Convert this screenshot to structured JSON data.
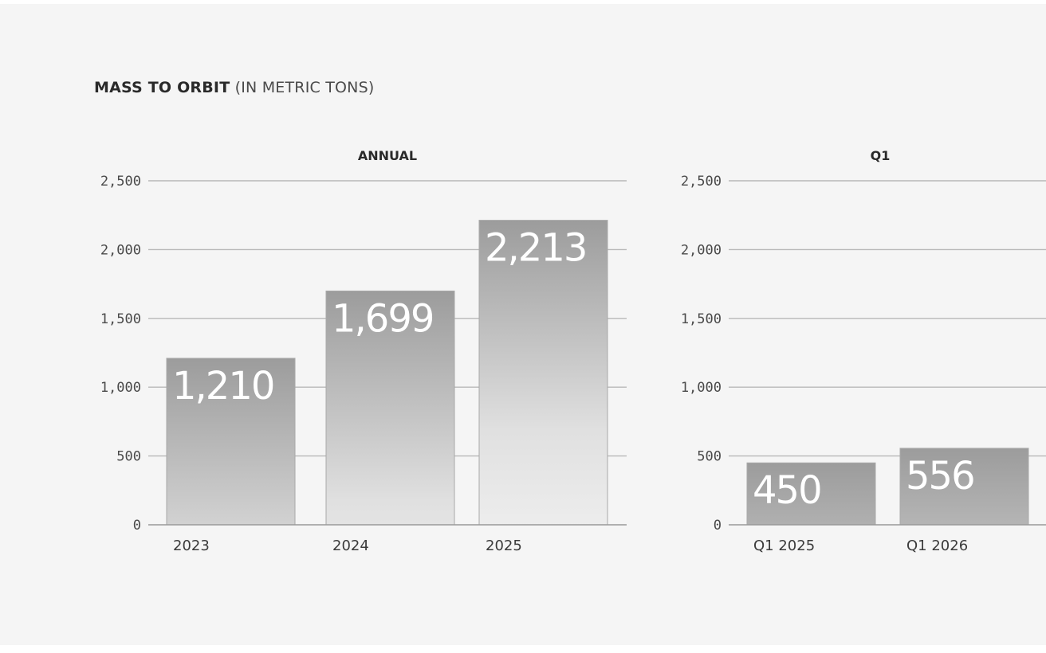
{
  "title": {
    "main": "MASS TO ORBIT",
    "sub": "(IN METRIC TONS)"
  },
  "chart_data": [
    {
      "type": "bar",
      "title": "ANNUAL",
      "categories": [
        "2023",
        "2024",
        "2025"
      ],
      "values": [
        1210,
        1699,
        2213
      ],
      "value_labels": [
        "1,210",
        "1,699",
        "2,213"
      ],
      "ylim": [
        0,
        2500
      ],
      "yticks": [
        0,
        500,
        1000,
        1500,
        2000,
        2500
      ],
      "ytick_labels": [
        "0",
        "500",
        "1,000",
        "1,500",
        "2,000",
        "2,500"
      ],
      "grid": true,
      "xlabel": "",
      "ylabel": ""
    },
    {
      "type": "bar",
      "title": "Q1",
      "categories": [
        "Q1 2025",
        "Q1 2026"
      ],
      "values": [
        450,
        556
      ],
      "value_labels": [
        "450",
        "556"
      ],
      "ylim": [
        0,
        2500
      ],
      "yticks": [
        0,
        500,
        1000,
        1500,
        2000,
        2500
      ],
      "ytick_labels": [
        "0",
        "500",
        "1,000",
        "1,500",
        "2,000",
        "2,500"
      ],
      "grid": true,
      "xlabel": "",
      "ylabel": ""
    }
  ]
}
